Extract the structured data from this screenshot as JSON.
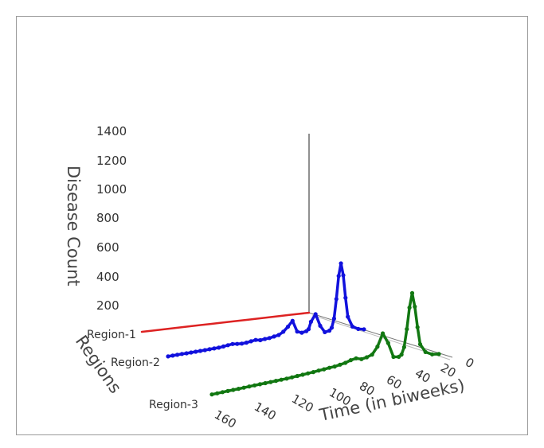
{
  "chart_data": {
    "type": "line",
    "projection": "3d",
    "xlabel": "Time (in biweeks)",
    "ylabel": "Regions",
    "zlabel": "Disease Count",
    "x_ticks": [
      0,
      20,
      40,
      60,
      80,
      100,
      120,
      140,
      160
    ],
    "z_ticks": [
      200,
      400,
      600,
      800,
      1000,
      1200,
      1400
    ],
    "xlim": [
      0,
      170
    ],
    "zlim": [
      0,
      1400
    ],
    "categories": [
      "Region-1",
      "Region-2",
      "Region-3"
    ],
    "series": [
      {
        "name": "Region-1",
        "color": "#dd2222",
        "marker": false,
        "x": [
          0,
          20,
          40,
          60,
          80,
          100,
          120,
          140,
          160,
          170
        ],
        "values": [
          0,
          0,
          0,
          0,
          0,
          0,
          0,
          0,
          0,
          0
        ]
      },
      {
        "name": "Region-2",
        "color": "#1111dd",
        "marker": true,
        "x": [
          0,
          5,
          10,
          14,
          16,
          18,
          20,
          22,
          24,
          26,
          28,
          30,
          34,
          38,
          42,
          46,
          48,
          50,
          54,
          58,
          62,
          66,
          70,
          74,
          78,
          82,
          86,
          90,
          94,
          98,
          102,
          106,
          110,
          114,
          118,
          122,
          126,
          130,
          134,
          138,
          142,
          146,
          150,
          154,
          158,
          162,
          166,
          170
        ],
        "values": [
          5,
          12,
          30,
          90,
          200,
          330,
          400,
          330,
          200,
          90,
          40,
          25,
          20,
          60,
          130,
          90,
          50,
          40,
          35,
          45,
          110,
          80,
          55,
          40,
          35,
          30,
          28,
          25,
          30,
          26,
          22,
          20,
          22,
          25,
          22,
          18,
          15,
          14,
          13,
          12,
          11,
          10,
          9,
          8,
          8,
          7,
          6,
          5
        ]
      },
      {
        "name": "Region-3",
        "color": "#117711",
        "marker": true,
        "x": [
          0,
          5,
          10,
          14,
          16,
          18,
          20,
          22,
          24,
          26,
          28,
          30,
          34,
          38,
          42,
          46,
          50,
          54,
          58,
          62,
          66,
          70,
          74,
          78,
          82,
          86,
          90,
          94,
          98,
          102,
          106,
          110,
          114,
          118,
          122,
          126,
          130,
          134,
          138,
          142,
          146,
          150,
          154,
          158,
          162,
          166,
          170
        ],
        "values": [
          5,
          10,
          30,
          80,
          180,
          300,
          380,
          300,
          180,
          80,
          40,
          30,
          35,
          120,
          180,
          110,
          70,
          60,
          55,
          65,
          60,
          50,
          45,
          40,
          38,
          35,
          33,
          30,
          28,
          26,
          24,
          22,
          20,
          19,
          18,
          17,
          16,
          15,
          14,
          13,
          12,
          11,
          10,
          9,
          8,
          7,
          6
        ]
      }
    ]
  }
}
